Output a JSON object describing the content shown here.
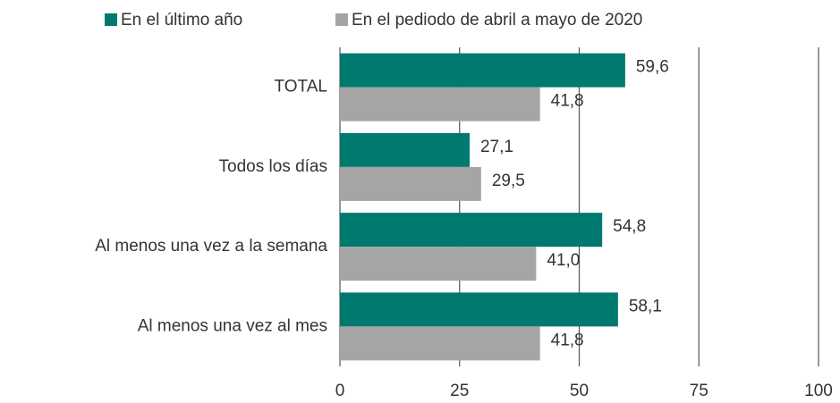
{
  "chart_data": {
    "type": "hbar",
    "categories": [
      "TOTAL",
      "Todos los días",
      "Al menos una vez a la semana",
      "Al menos una vez al mes"
    ],
    "series": [
      {
        "name": "En el último año",
        "color": "#00796f",
        "values": [
          59.6,
          27.1,
          54.8,
          58.1
        ],
        "value_labels": [
          "59,6",
          "27,1",
          "54,8",
          "58,1"
        ]
      },
      {
        "name": "En el pediodo de abril a mayo de 2020",
        "color": "#a5a5a5",
        "values": [
          41.8,
          29.5,
          41.0,
          41.8
        ],
        "value_labels": [
          "41,8",
          "29,5",
          "41,0",
          "41,8"
        ]
      }
    ],
    "xlim": [
      0,
      100
    ],
    "xticks": [
      0,
      25,
      50,
      75,
      100
    ],
    "grid": true
  }
}
